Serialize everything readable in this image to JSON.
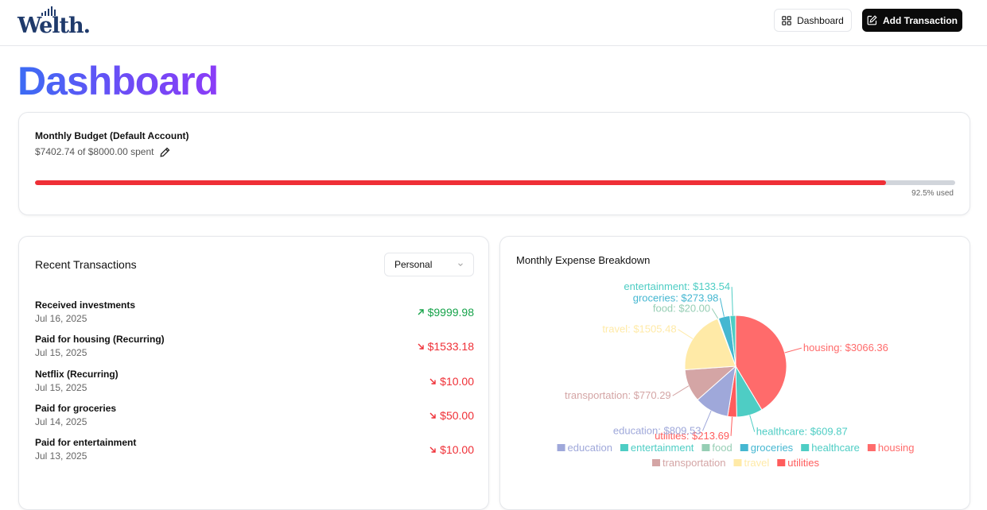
{
  "header": {
    "logo_text": "Welth",
    "logo_dot": ".",
    "dashboard_button_label": "Dashboard",
    "add_transaction_label": "Add Transaction",
    "icons": {
      "dashboard": "layout-grid-icon",
      "add": "pen-square-icon"
    }
  },
  "page": {
    "title": "Dashboard"
  },
  "budget": {
    "title": "Monthly Budget (Default Account)",
    "spent_text": "$7402.74 of $8000.00 spent",
    "used_fraction": 0.925,
    "used_label": "92.5% used",
    "colors": {
      "fill": "#ef2f36",
      "track": "#d1d5db"
    }
  },
  "transactions": {
    "title": "Recent Transactions",
    "account_filter": {
      "selected": "Personal"
    },
    "items": [
      {
        "description": "Received investments",
        "date": "Jul 16, 2025",
        "amount": "$9999.98",
        "type": "income"
      },
      {
        "description": "Paid for housing (Recurring)",
        "date": "Jul 15, 2025",
        "amount": "$1533.18",
        "type": "expense"
      },
      {
        "description": "Netflix (Recurring)",
        "date": "Jul 15, 2025",
        "amount": "$10.00",
        "type": "expense"
      },
      {
        "description": "Paid for groceries",
        "date": "Jul 14, 2025",
        "amount": "$50.00",
        "type": "expense"
      },
      {
        "description": "Paid for entertainment",
        "date": "Jul 13, 2025",
        "amount": "$10.00",
        "type": "expense"
      }
    ],
    "colors": {
      "income": "#16a34a",
      "expense": "#ef2f36"
    }
  },
  "expense_chart": {
    "title": "Monthly Expense Breakdown",
    "chart_data": {
      "type": "pie",
      "slices": [
        {
          "name": "housing",
          "value": 3066.36,
          "label": "housing: $3066.36",
          "color": "#ff6b6b"
        },
        {
          "name": "healthcare",
          "value": 609.87,
          "label": "healthcare: $609.87",
          "color": "#4ecdc4"
        },
        {
          "name": "utilities",
          "value": 213.69,
          "label": "utilities: $213.69",
          "color": "#ff5c5c"
        },
        {
          "name": "education",
          "value": 809.53,
          "label": "education: $809.53",
          "color": "#9fa8da"
        },
        {
          "name": "transportation",
          "value": 770.29,
          "label": "transportation: $770.29",
          "color": "#d4a5a5"
        },
        {
          "name": "travel",
          "value": 1505.48,
          "label": "travel: $1505.48",
          "color": "#ffeaa7"
        },
        {
          "name": "food",
          "value": 20.0,
          "label": "food: $20.00",
          "color": "#96ceb4"
        },
        {
          "name": "groceries",
          "value": 273.98,
          "label": "groceries: $273.98",
          "color": "#45b7d1"
        },
        {
          "name": "entertainment",
          "value": 133.54,
          "label": "entertainment: $133.54",
          "color": "#4ecdc4"
        }
      ],
      "legend": {
        "placement": "bottom",
        "entries": [
          {
            "name": "education",
            "color": "#9fa8da"
          },
          {
            "name": "entertainment",
            "color": "#4ecdc4"
          },
          {
            "name": "food",
            "color": "#96ceb4"
          },
          {
            "name": "groceries",
            "color": "#45b7d1"
          },
          {
            "name": "healthcare",
            "color": "#4ecdc4"
          },
          {
            "name": "housing",
            "color": "#ff6b6b"
          },
          {
            "name": "transportation",
            "color": "#d4a5a5"
          },
          {
            "name": "travel",
            "color": "#ffeaa7"
          },
          {
            "name": "utilities",
            "color": "#ff5c5c"
          }
        ]
      }
    }
  }
}
